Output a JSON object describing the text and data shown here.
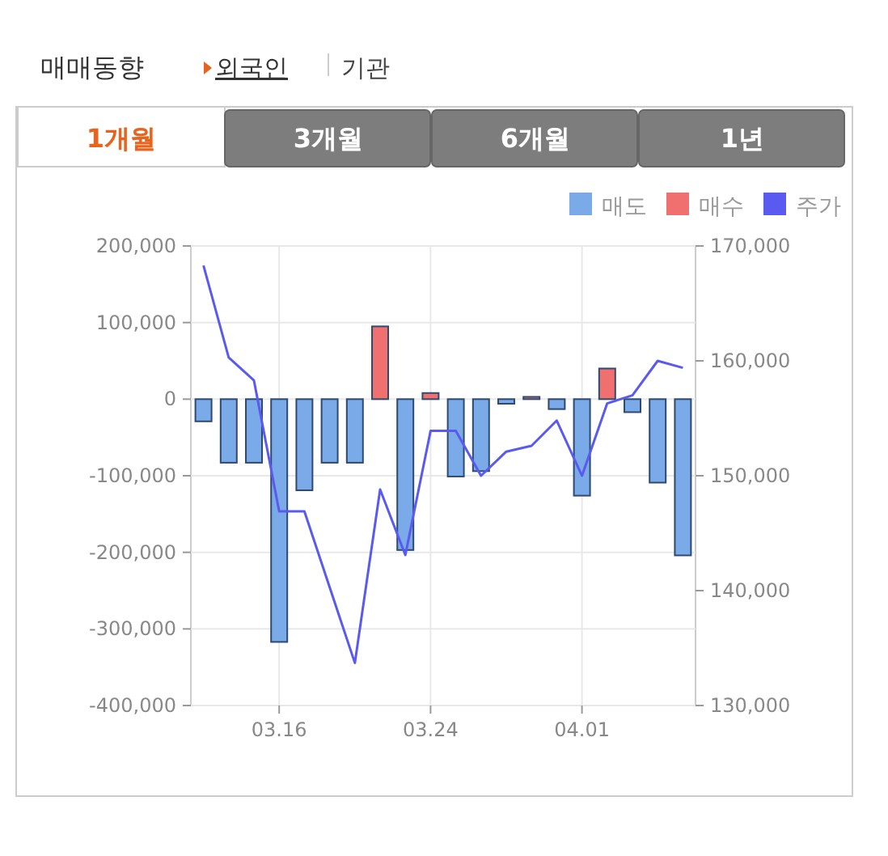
{
  "chart_data": {
    "type": "bar",
    "title": "매매동향",
    "grid": true,
    "legend": "top right",
    "annotations": [
      "외국인",
      "기관",
      "1개월",
      "3개월",
      "6개월",
      "1년"
    ],
    "categories": [
      null,
      null,
      null,
      "03.16",
      null,
      null,
      null,
      null,
      null,
      "03.24",
      null,
      null,
      null,
      null,
      null,
      "04.01",
      null,
      null,
      null,
      null
    ],
    "series": [
      {
        "name": "매도",
        "color": "#7aaae8",
        "values": [
          -29000,
          -83000,
          -83000,
          -317000,
          -119000,
          -83000,
          -83000,
          0,
          -197000,
          0,
          -101000,
          -94000,
          -6000,
          0,
          -13000,
          -126000,
          0,
          -17000,
          -109000,
          -204000
        ]
      },
      {
        "name": "매수",
        "color": "#f07070",
        "values": [
          0,
          0,
          0,
          0,
          0,
          0,
          0,
          95000,
          0,
          8000,
          0,
          0,
          0,
          3000,
          0,
          0,
          40000,
          0,
          0,
          0
        ]
      },
      {
        "name": "주가",
        "color": "#5a5af0",
        "type": "line",
        "axis": "y2",
        "values": [
          168300,
          160300,
          158300,
          146900,
          146900,
          140300,
          133700,
          148800,
          143100,
          153900,
          153900,
          150000,
          152100,
          152600,
          154800,
          150000,
          156300,
          157000,
          160000,
          159400
        ]
      }
    ],
    "ylim": [
      -400000,
      200000
    ],
    "yticks": [
      {
        "value": -400000,
        "label": "-400,000"
      },
      {
        "value": -300000,
        "label": "-300,000"
      },
      {
        "value": -200000,
        "label": "-200,000"
      },
      {
        "value": -100000,
        "label": "-100,000"
      },
      0,
      {
        "value": 100000,
        "label": "100,000"
      },
      {
        "value": 200000,
        "label": "200,000"
      }
    ],
    "y2lim": [
      130000,
      170000
    ],
    "y2ticks": [
      {
        "value": 130000,
        "label": "130,000"
      },
      {
        "value": 140000,
        "label": "140,000"
      },
      {
        "value": 150000,
        "label": "150,000"
      },
      {
        "value": 160000,
        "label": "160,000"
      },
      {
        "value": 170000,
        "label": "170,000"
      }
    ]
  }
}
